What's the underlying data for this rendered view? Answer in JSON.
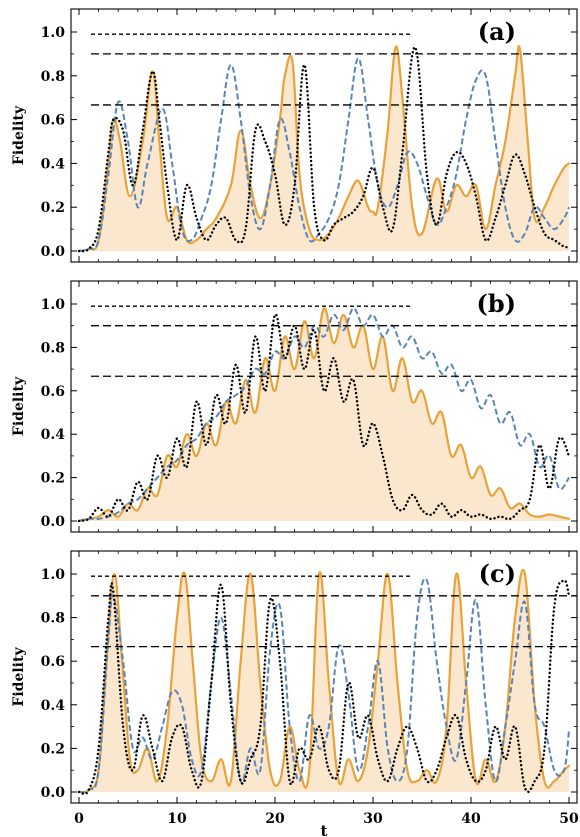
{
  "colors": {
    "solid": "#e8a23a",
    "fill": "#fbe7cd",
    "dashed": "#5b84b8",
    "dotted": "#000000",
    "ref": "#000000"
  },
  "chart_data": [
    {
      "type": "line",
      "panel_label": "(a)",
      "ylabel": "Fidelity",
      "xlabel": "",
      "xlim": [
        0,
        50
      ],
      "ylim": [
        0,
        1.05
      ],
      "xticks": [],
      "yticks": [
        "0.0",
        "0.2",
        "0.4",
        "0.6",
        "0.8",
        "1.0"
      ],
      "reference_lines": [
        {
          "y": 0.99,
          "x_end": 34,
          "style": "short-dash"
        },
        {
          "y": 0.9,
          "x_end": 50,
          "style": "long-dash"
        },
        {
          "y": 0.667,
          "x_end": 50,
          "style": "long-dash"
        }
      ],
      "series": [
        {
          "style": "solid",
          "filled": true,
          "x": [
            0,
            1,
            2,
            3,
            3.5,
            4.2,
            5.2,
            6.5,
            7.5,
            8.2,
            9,
            10,
            11,
            12,
            13,
            14,
            15.5,
            16.5,
            17.5,
            18.5,
            19.5,
            20.5,
            21,
            21.8,
            22.5,
            23.5,
            24.5,
            25.5,
            26.5,
            27.5,
            28.5,
            29.5,
            30,
            30.5,
            31.5,
            32.3,
            33,
            34,
            35,
            36.5,
            37.5,
            38.5,
            39.5,
            40.5,
            41.5,
            42.5,
            43.5,
            44.5,
            45,
            45.8,
            46.5,
            47.5,
            48.5,
            49.5,
            50
          ],
          "y": [
            0,
            0.01,
            0.05,
            0.4,
            0.6,
            0.5,
            0.25,
            0.5,
            0.82,
            0.5,
            0.15,
            0.2,
            0.05,
            0.05,
            0.1,
            0.15,
            0.3,
            0.55,
            0.3,
            0.15,
            0.3,
            0.6,
            0.8,
            0.86,
            0.35,
            0.1,
            0.05,
            0.08,
            0.15,
            0.25,
            0.32,
            0.2,
            0.18,
            0.2,
            0.55,
            0.93,
            0.7,
            0.2,
            0.08,
            0.33,
            0.18,
            0.3,
            0.25,
            0.3,
            0.1,
            0.3,
            0.5,
            0.8,
            0.92,
            0.5,
            0.15,
            0.2,
            0.3,
            0.38,
            0.4
          ]
        },
        {
          "style": "dashed",
          "x": [
            0,
            1,
            2,
            3,
            4,
            5,
            6,
            7,
            8.5,
            9.5,
            10.5,
            11.5,
            12.5,
            13.5,
            14.5,
            15.5,
            16.5,
            17.5,
            18.5,
            19.5,
            20.5,
            21.5,
            22.5,
            23.5,
            24.5,
            25.5,
            26.5,
            27.5,
            28.5,
            29.5,
            30.5,
            31.5,
            32.5,
            33.5,
            34.5,
            35.5,
            36.5,
            37.5,
            38.5,
            39.5,
            40.5,
            41.5,
            42.5,
            43.5,
            44.5,
            45.5,
            46.5,
            47.5,
            48.5,
            49.5,
            50
          ],
          "y": [
            0,
            0.01,
            0.05,
            0.35,
            0.68,
            0.5,
            0.2,
            0.4,
            0.65,
            0.4,
            0.1,
            0.05,
            0.15,
            0.3,
            0.6,
            0.85,
            0.6,
            0.25,
            0.1,
            0.3,
            0.6,
            0.45,
            0.2,
            0.05,
            0.08,
            0.15,
            0.3,
            0.6,
            0.88,
            0.6,
            0.3,
            0.2,
            0.3,
            0.45,
            0.4,
            0.25,
            0.12,
            0.2,
            0.35,
            0.6,
            0.78,
            0.8,
            0.5,
            0.2,
            0.05,
            0.08,
            0.2,
            0.15,
            0.1,
            0.15,
            0.2
          ]
        },
        {
          "style": "dotted",
          "x": [
            0,
            1,
            2,
            3,
            3.5,
            4.5,
            5.5,
            6.5,
            7.5,
            8.2,
            9,
            10,
            11,
            12,
            13,
            14,
            15,
            16,
            17,
            18,
            19,
            20,
            21,
            22,
            23,
            24,
            25,
            26,
            27,
            28,
            29,
            30,
            31,
            32,
            33,
            34.3,
            35.5,
            36.5,
            37.5,
            38.5,
            39.5,
            40.5,
            41.5,
            42.5,
            43.5,
            44.5,
            45.5,
            46.5,
            47.5,
            48.5,
            49.5,
            50
          ],
          "y": [
            0,
            0.01,
            0.1,
            0.45,
            0.6,
            0.55,
            0.3,
            0.55,
            0.82,
            0.6,
            0.3,
            0.05,
            0.3,
            0.15,
            0.05,
            0.12,
            0.15,
            0.05,
            0.1,
            0.55,
            0.5,
            0.35,
            0.12,
            0.3,
            0.85,
            0.2,
            0.05,
            0.12,
            0.15,
            0.18,
            0.25,
            0.38,
            0.2,
            0.1,
            0.45,
            0.93,
            0.35,
            0.12,
            0.35,
            0.45,
            0.4,
            0.25,
            0.05,
            0.15,
            0.3,
            0.44,
            0.35,
            0.2,
            0.08,
            0.05,
            0.02,
            0.02
          ]
        }
      ]
    },
    {
      "type": "line",
      "panel_label": "(b)",
      "ylabel": "Fidelity",
      "xlabel": "",
      "xlim": [
        0,
        50
      ],
      "ylim": [
        0,
        1.05
      ],
      "xticks": [],
      "yticks": [
        "0.0",
        "0.2",
        "0.4",
        "0.6",
        "0.8",
        "1.0"
      ],
      "reference_lines": [
        {
          "y": 0.99,
          "x_end": 34,
          "style": "short-dash"
        },
        {
          "y": 0.9,
          "x_end": 50,
          "style": "long-dash"
        },
        {
          "y": 0.667,
          "x_end": 50,
          "style": "long-dash"
        }
      ],
      "series": [
        {
          "style": "solid",
          "filled": true,
          "x": [
            0,
            1,
            2,
            3,
            4,
            5,
            6,
            7,
            8,
            9,
            10,
            11,
            12,
            13,
            14,
            15,
            16,
            17,
            18,
            19,
            20,
            21,
            22,
            23,
            24,
            25,
            26,
            27,
            28,
            29,
            30,
            31,
            32,
            33,
            34,
            35,
            36,
            37,
            38,
            39,
            40,
            41,
            42,
            43,
            44,
            45,
            46,
            47,
            48,
            49,
            50
          ],
          "y": [
            0,
            0.01,
            0.02,
            0.05,
            0.02,
            0.08,
            0.05,
            0.15,
            0.12,
            0.3,
            0.25,
            0.4,
            0.3,
            0.45,
            0.35,
            0.55,
            0.45,
            0.65,
            0.5,
            0.75,
            0.6,
            0.85,
            0.7,
            0.92,
            0.75,
            0.98,
            0.82,
            0.95,
            0.8,
            0.9,
            0.7,
            0.85,
            0.6,
            0.75,
            0.55,
            0.6,
            0.45,
            0.5,
            0.3,
            0.35,
            0.2,
            0.25,
            0.12,
            0.15,
            0.06,
            0.08,
            0.03,
            0.02,
            0.03,
            0.02,
            0.01
          ]
        },
        {
          "style": "dashed",
          "x": [
            0,
            1,
            2,
            3,
            4,
            5,
            6,
            7,
            8,
            9,
            10,
            11,
            12,
            13,
            14,
            15,
            16,
            17,
            18,
            19,
            20,
            21,
            22,
            23,
            24,
            25,
            26,
            27,
            28,
            29,
            30,
            31,
            32,
            33,
            34,
            35,
            36,
            37,
            38,
            39,
            40,
            41,
            42,
            43,
            44,
            45,
            46,
            47,
            48,
            49,
            50
          ],
          "y": [
            0,
            0.01,
            0.01,
            0.02,
            0.04,
            0.08,
            0.1,
            0.15,
            0.2,
            0.25,
            0.28,
            0.35,
            0.38,
            0.45,
            0.48,
            0.55,
            0.58,
            0.62,
            0.7,
            0.68,
            0.78,
            0.75,
            0.85,
            0.8,
            0.9,
            0.85,
            0.95,
            0.88,
            0.98,
            0.9,
            0.95,
            0.85,
            0.9,
            0.8,
            0.85,
            0.75,
            0.78,
            0.68,
            0.72,
            0.6,
            0.65,
            0.52,
            0.58,
            0.45,
            0.5,
            0.35,
            0.4,
            0.25,
            0.3,
            0.15,
            0.2
          ]
        },
        {
          "style": "dotted",
          "x": [
            0,
            1,
            2,
            3,
            4,
            5,
            6,
            7,
            8,
            9,
            10,
            11,
            12,
            13,
            14,
            15,
            16,
            17,
            18,
            19,
            20,
            21,
            22,
            23,
            24,
            25,
            26,
            27,
            28,
            29,
            30,
            31,
            32,
            33,
            34,
            35,
            36,
            37,
            38,
            39,
            40,
            41,
            42,
            43,
            44,
            45,
            46,
            47,
            48,
            49,
            50
          ],
          "y": [
            0,
            0.01,
            0.06,
            0.02,
            0.1,
            0.05,
            0.18,
            0.1,
            0.3,
            0.2,
            0.38,
            0.25,
            0.55,
            0.35,
            0.58,
            0.45,
            0.72,
            0.5,
            0.85,
            0.6,
            0.95,
            0.75,
            0.9,
            0.7,
            0.88,
            0.6,
            0.75,
            0.55,
            0.65,
            0.35,
            0.45,
            0.3,
            0.1,
            0.05,
            0.12,
            0.05,
            0.03,
            0.08,
            0.02,
            0.05,
            0.02,
            0.03,
            0.01,
            0.02,
            0.01,
            0.05,
            0.1,
            0.35,
            0.15,
            0.38,
            0.3
          ]
        }
      ]
    },
    {
      "type": "line",
      "panel_label": "(c)",
      "ylabel": "Fidelity",
      "xlabel": "t",
      "xlim": [
        0,
        50
      ],
      "ylim": [
        0,
        1.05
      ],
      "xticks": [
        "0",
        "10",
        "20",
        "30",
        "40",
        "50"
      ],
      "yticks": [
        "0.0",
        "0.2",
        "0.4",
        "0.6",
        "0.8",
        "1.0"
      ],
      "reference_lines": [
        {
          "y": 0.99,
          "x_end": 34,
          "style": "short-dash"
        },
        {
          "y": 0.9,
          "x_end": 50,
          "style": "long-dash"
        },
        {
          "y": 0.667,
          "x_end": 50,
          "style": "long-dash"
        }
      ],
      "series": [
        {
          "style": "solid",
          "filled": true,
          "x": [
            0,
            1,
            2,
            2.8,
            3.6,
            4.4,
            5.2,
            6,
            7,
            8,
            9,
            10,
            10.8,
            11.6,
            12.5,
            13.5,
            14.5,
            15.5,
            16.5,
            17.5,
            18.5,
            19.5,
            20.5,
            21.5,
            22.5,
            23.5,
            24.5,
            25.5,
            26.5,
            27.5,
            28.5,
            29.5,
            30.5,
            31.5,
            32.5,
            33.5,
            34.5,
            35.5,
            36.5,
            37.5,
            38.5,
            39.5,
            40.5,
            41.5,
            42.5,
            43.5,
            44.5,
            45.5,
            46.5,
            47.5,
            48.5,
            49.5,
            50
          ],
          "y": [
            0,
            0.01,
            0.1,
            0.6,
            1.0,
            0.6,
            0.15,
            0.1,
            0.2,
            0.05,
            0.3,
            0.8,
            1.0,
            0.6,
            0.15,
            0.05,
            0.15,
            0.05,
            0.6,
            1.0,
            0.5,
            0.1,
            0.05,
            0.3,
            0.1,
            0.1,
            1.0,
            0.5,
            0.05,
            0.15,
            0.05,
            0.2,
            0.6,
            1.0,
            0.5,
            0.1,
            0.05,
            0.1,
            0.05,
            0.3,
            1.0,
            0.5,
            0.05,
            0.15,
            0.05,
            0.3,
            0.8,
            1.0,
            0.4,
            0.05,
            0.05,
            0.1,
            0.12
          ]
        },
        {
          "style": "dashed",
          "x": [
            0,
            1,
            2,
            3,
            3.5,
            4.5,
            5.5,
            6.5,
            7.5,
            8.5,
            9.5,
            10.5,
            11.5,
            12.5,
            13.5,
            14.5,
            15.5,
            16.5,
            17.5,
            18.5,
            19.5,
            20.5,
            21.5,
            22.5,
            23.5,
            24.5,
            25.5,
            26.5,
            27.5,
            28.5,
            29.5,
            30.5,
            31.5,
            32.5,
            33.5,
            34.5,
            35.5,
            36.5,
            37.5,
            38.5,
            39.5,
            40.5,
            41.5,
            42.5,
            43.5,
            44.5,
            45.5,
            46.5,
            47.5,
            48.5,
            49.5,
            50
          ],
          "y": [
            0,
            0.01,
            0.1,
            0.7,
            0.9,
            0.6,
            0.2,
            0.25,
            0.15,
            0.3,
            0.46,
            0.4,
            0.15,
            0.1,
            0.5,
            0.8,
            0.45,
            0.05,
            0.2,
            0.1,
            0.65,
            0.85,
            0.3,
            0.05,
            0.35,
            0.2,
            0.3,
            0.67,
            0.45,
            0.1,
            0.3,
            0.6,
            0.2,
            0.05,
            0.2,
            0.8,
            0.97,
            0.6,
            0.3,
            0.15,
            0.5,
            0.88,
            0.4,
            0.05,
            0.3,
            0.6,
            0.87,
            0.4,
            0.3,
            0.1,
            0.1,
            0.28
          ]
        },
        {
          "style": "dotted",
          "x": [
            0,
            1,
            2,
            3,
            3.5,
            4.5,
            5.5,
            6.5,
            7.5,
            8.5,
            9.5,
            10.5,
            11.5,
            12.5,
            13.5,
            14.5,
            15.5,
            16.5,
            17.5,
            18.5,
            19.5,
            20.5,
            21.5,
            22.5,
            23.5,
            24.5,
            25.5,
            26.5,
            27.5,
            28.5,
            29.5,
            30.5,
            31.5,
            32.5,
            33.5,
            34.5,
            35.5,
            36.5,
            37.5,
            38.5,
            39.5,
            40.5,
            41.5,
            42.5,
            43.5,
            44.5,
            45.5,
            46.5,
            47.5,
            48.5,
            49.5,
            50
          ],
          "y": [
            0,
            0.01,
            0.2,
            0.8,
            0.92,
            0.3,
            0.1,
            0.35,
            0.2,
            0.05,
            0.25,
            0.3,
            0.1,
            0.05,
            0.5,
            0.95,
            0.4,
            0.05,
            0.15,
            0.3,
            0.88,
            0.6,
            0.05,
            0.2,
            0.15,
            0.3,
            0.1,
            0.1,
            0.5,
            0.25,
            0.35,
            0.15,
            0.05,
            0.2,
            0.3,
            0.2,
            0.05,
            0.1,
            0.25,
            0.35,
            0.15,
            0.05,
            0.1,
            0.3,
            0.15,
            0.3,
            0.02,
            0.05,
            0.2,
            0.85,
            0.97,
            0.9
          ]
        }
      ]
    }
  ]
}
